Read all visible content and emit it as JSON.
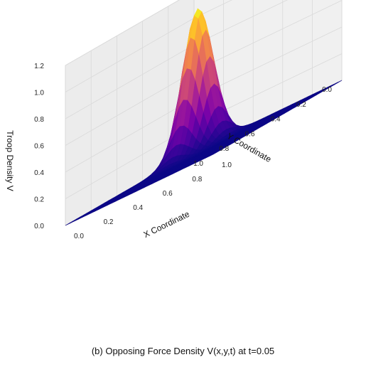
{
  "chart_data": {
    "type": "surface",
    "title": "",
    "caption": "(b) Opposing Force Density V(x,y,t) at t=0.05",
    "xlabel": "X Coordinate",
    "ylabel": "Y Coordinate",
    "zlabel": "Troop Density V",
    "xlim": [
      0,
      1
    ],
    "ylim": [
      0,
      1
    ],
    "zlim": [
      0,
      1.2
    ],
    "x_ticks": [
      "0.0",
      "0.2",
      "0.4",
      "0.6",
      "0.8",
      "1.0"
    ],
    "y_ticks": [
      "0.0",
      "0.2",
      "0.4",
      "0.6",
      "0.8",
      "1.0"
    ],
    "z_ticks": [
      "0.0",
      "0.2",
      "0.4",
      "0.6",
      "0.8",
      "1.0",
      "1.2"
    ],
    "surface": {
      "shape": "gaussian",
      "peak_x": 0.2,
      "peak_y": 0.2,
      "peak_value": 1.08,
      "spread": 0.08
    },
    "colormap": "plasma",
    "grid": true
  }
}
